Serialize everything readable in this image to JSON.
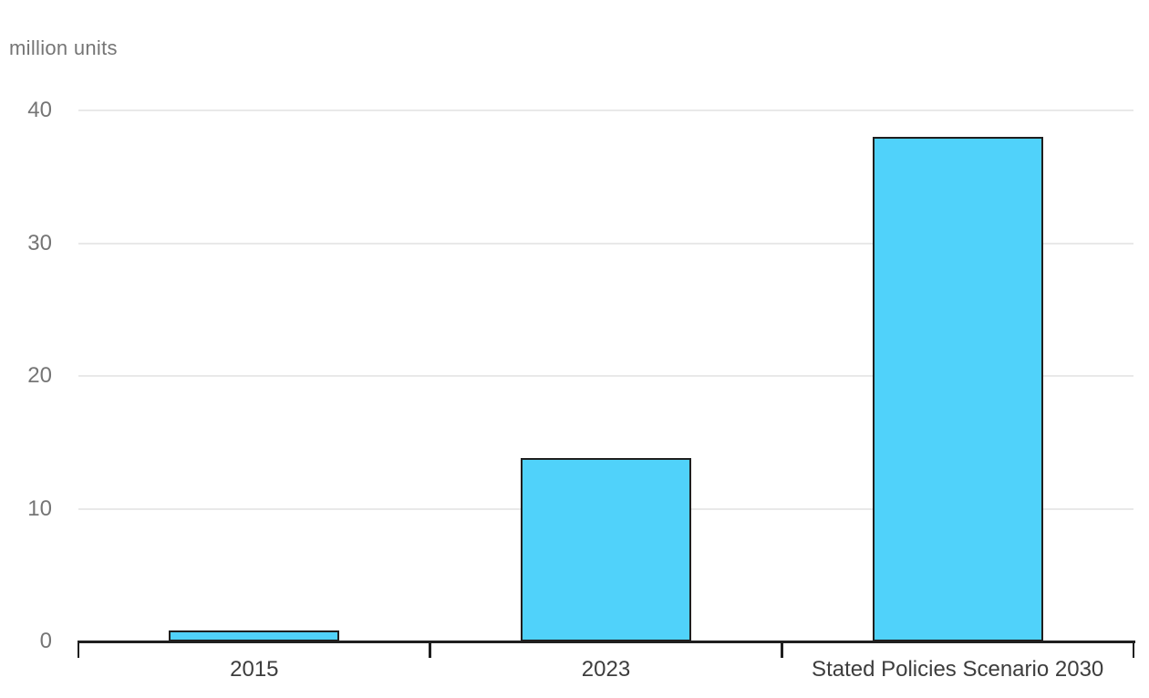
{
  "chart_data": {
    "type": "bar",
    "title": "",
    "ylabel": "million units",
    "xlabel": "",
    "categories": [
      "2015",
      "2023",
      "Stated Policies Scenario 2030"
    ],
    "values": [
      0.8,
      13.8,
      38
    ],
    "ylim": [
      0,
      40
    ],
    "yticks": [
      0,
      10,
      20,
      30,
      40
    ],
    "grid": true,
    "legend": "none",
    "colors": {
      "bar_fill": "#50D2FA",
      "bar_border": "#1F1F1F",
      "axis": "#1F1F1F",
      "gridline": "#E9E9E9",
      "ytick_label": "#757575",
      "xtick_label": "#3D3D3D",
      "unit_label": "#757575",
      "background": "#FFFFFF"
    }
  }
}
